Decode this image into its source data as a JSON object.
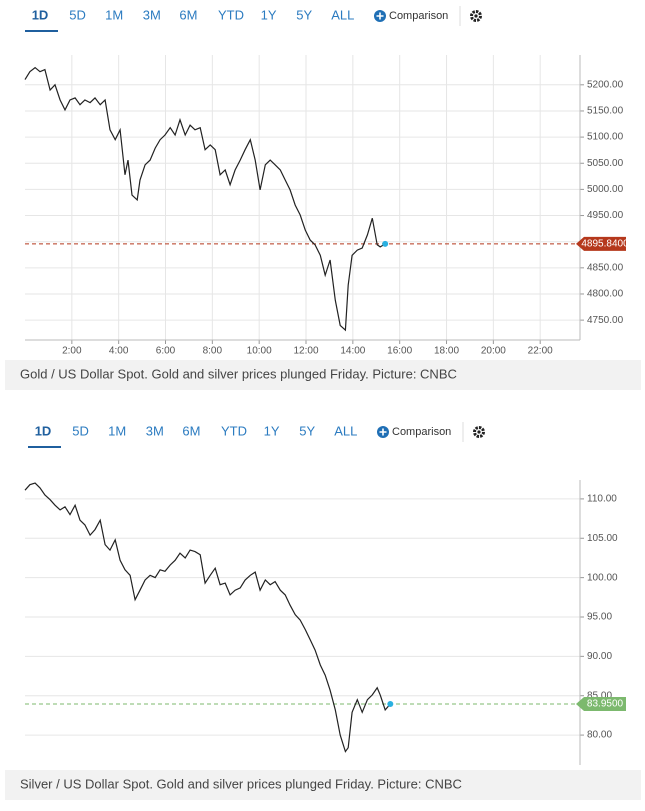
{
  "toolbar": {
    "ranges": [
      "1D",
      "5D",
      "1M",
      "3M",
      "6M",
      "YTD",
      "1Y",
      "5Y",
      "ALL"
    ],
    "comparison": "Comparison"
  },
  "chart_data": [
    {
      "type": "line",
      "caption": "Gold / US Dollar Spot. Gold and silver prices plunged Friday. Picture: CNBC",
      "color": "#222222",
      "last_color": "#b5381c",
      "marker_color": "#2ab0e0",
      "grid": true,
      "x": [
        0,
        0.21,
        0.43,
        0.64,
        0.85,
        1.07,
        1.28,
        1.5,
        1.71,
        1.92,
        2.14,
        2.35,
        2.56,
        2.78,
        2.99,
        3.21,
        3.42,
        3.63,
        3.85,
        4.06,
        4.27,
        4.4,
        4.57,
        4.79,
        4.91,
        5.13,
        5.34,
        5.56,
        5.77,
        5.98,
        6.2,
        6.41,
        6.62,
        6.84,
        7.05,
        7.26,
        7.48,
        7.69,
        7.91,
        8.12,
        8.33,
        8.55,
        8.76,
        8.97,
        9.19,
        9.4,
        9.62,
        9.83,
        10.04,
        10.26,
        10.47,
        10.68,
        10.9,
        11.11,
        11.32,
        11.54,
        11.75,
        11.97,
        12.18,
        12.39,
        12.61,
        12.82,
        13.03,
        13.25,
        13.46,
        13.68,
        13.8,
        13.97,
        14.19,
        14.4,
        14.62,
        14.83,
        15.04,
        15.17,
        15.38
      ],
      "values": [
        5210,
        5225,
        5233,
        5225,
        5229,
        5190,
        5200,
        5171,
        5152,
        5171,
        5175,
        5162,
        5171,
        5166,
        5175,
        5162,
        5171,
        5114,
        5095,
        5114,
        5028,
        5056,
        4989,
        4980,
        5018,
        5047,
        5056,
        5079,
        5095,
        5104,
        5118,
        5104,
        5133,
        5104,
        5123,
        5114,
        5118,
        5076,
        5085,
        5076,
        5028,
        5037,
        5009,
        5037,
        5056,
        5076,
        5095,
        5056,
        4999,
        5047,
        5056,
        5047,
        5037,
        5018,
        4999,
        4970,
        4951,
        4922,
        4903,
        4894,
        4874,
        4836,
        4865,
        4788,
        4740,
        4731,
        4817,
        4874,
        4884,
        4888,
        4913,
        4945,
        4894,
        4890,
        4895.84
      ],
      "last_label": "4895.8400",
      "xlim": [
        0,
        23.7
      ],
      "ylim": [
        4712,
        5257
      ],
      "xticks": [
        {
          "value": 2,
          "label": "2:00"
        },
        {
          "value": 4,
          "label": "4:00"
        },
        {
          "value": 6,
          "label": "6:00"
        },
        {
          "value": 8,
          "label": "8:00"
        },
        {
          "value": 10,
          "label": "10:00"
        },
        {
          "value": 12,
          "label": "12:00"
        },
        {
          "value": 14,
          "label": "14:00"
        },
        {
          "value": 16,
          "label": "16:00"
        },
        {
          "value": 18,
          "label": "18:00"
        },
        {
          "value": 20,
          "label": "20:00"
        },
        {
          "value": 22,
          "label": "22:00"
        }
      ],
      "yticks": [
        {
          "value": 4750,
          "label": "4750.00"
        },
        {
          "value": 4800,
          "label": "4800.00"
        },
        {
          "value": 4850,
          "label": "4850.00"
        },
        {
          "value": 4900,
          "label": "4900.00"
        },
        {
          "value": 4950,
          "label": "4950.00"
        },
        {
          "value": 5000,
          "label": "5000.00"
        },
        {
          "value": 5050,
          "label": "5050.00"
        },
        {
          "value": 5100,
          "label": "5100.00"
        },
        {
          "value": 5150,
          "label": "5150.00"
        },
        {
          "value": 5200,
          "label": "5200.00"
        }
      ]
    },
    {
      "type": "line",
      "caption": "Silver / US Dollar Spot. Gold and silver prices plunged Friday. Picture: CNBC",
      "color": "#222222",
      "last_color": "#7cb96e",
      "marker_color": "#2ab0e0",
      "grid": true,
      "x": [
        0,
        0.21,
        0.43,
        0.64,
        0.85,
        1.07,
        1.28,
        1.5,
        1.71,
        1.92,
        2.14,
        2.35,
        2.56,
        2.78,
        2.99,
        3.21,
        3.42,
        3.63,
        3.85,
        4.06,
        4.27,
        4.49,
        4.7,
        4.91,
        5.13,
        5.34,
        5.56,
        5.77,
        5.98,
        6.2,
        6.41,
        6.62,
        6.84,
        7.05,
        7.26,
        7.48,
        7.69,
        7.91,
        8.12,
        8.33,
        8.55,
        8.76,
        8.97,
        9.19,
        9.4,
        9.62,
        9.83,
        10.04,
        10.26,
        10.47,
        10.68,
        10.9,
        11.11,
        11.32,
        11.54,
        11.75,
        11.97,
        12.18,
        12.39,
        12.61,
        12.82,
        13.03,
        13.25,
        13.46,
        13.68,
        13.8,
        13.97,
        14.19,
        14.4,
        14.62,
        14.83,
        15.04,
        15.17,
        15.38,
        15.6
      ],
      "values": [
        111.1,
        111.8,
        112.0,
        111.4,
        110.5,
        109.9,
        109.2,
        108.6,
        109,
        108,
        109.2,
        107.3,
        106.7,
        105.4,
        106.1,
        107.3,
        104.2,
        103.5,
        104.8,
        102.2,
        101,
        100.3,
        97.2,
        98.4,
        99.7,
        100.3,
        100,
        101,
        100.8,
        101.6,
        102.2,
        103.1,
        102.5,
        103.5,
        103.3,
        102.9,
        99.3,
        100.3,
        101.2,
        99.1,
        99.3,
        97.8,
        98.4,
        98.7,
        99.7,
        100.3,
        100.7,
        98.4,
        99.7,
        99.1,
        99.5,
        98.4,
        97.8,
        96.5,
        95.3,
        94.6,
        93.4,
        92.1,
        90.8,
        88.9,
        87.6,
        85.7,
        83.2,
        80,
        77.9,
        78.4,
        82.9,
        84.5,
        82.9,
        84.5,
        85.1,
        86,
        85.1,
        83.2,
        83.95
      ],
      "last_label": "83.9500",
      "xlim": [
        0,
        23.7
      ],
      "ylim": [
        76.2,
        112.4
      ],
      "yticks": [
        {
          "value": 80,
          "label": "80.00"
        },
        {
          "value": 85,
          "label": "85.00"
        },
        {
          "value": 90,
          "label": "90.00"
        },
        {
          "value": 95,
          "label": "95.00"
        },
        {
          "value": 100,
          "label": "100.00"
        },
        {
          "value": 105,
          "label": "105.00"
        },
        {
          "value": 110,
          "label": "110.00"
        }
      ]
    }
  ]
}
